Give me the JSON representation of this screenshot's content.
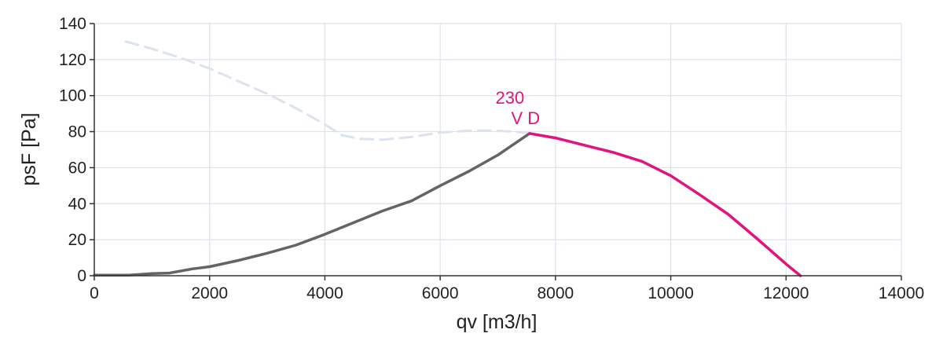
{
  "chart_data": {
    "type": "line",
    "title": "",
    "xlabel": "qv [m3/h]",
    "ylabel": "psF [Pa]",
    "xlim": [
      0,
      14000
    ],
    "ylim": [
      0,
      140
    ],
    "xticks": [
      0,
      2000,
      4000,
      6000,
      8000,
      10000,
      12000,
      14000
    ],
    "yticks": [
      0,
      20,
      40,
      60,
      80,
      100,
      120,
      140
    ],
    "grid": true,
    "legend": "none",
    "series": [
      {
        "style": "dashed",
        "color": "#dce3ee",
        "x": [
          550,
          1000,
          1500,
          2000,
          2500,
          3000,
          3500,
          4000,
          4300,
          4600,
          5000,
          5500,
          6000,
          6500,
          7000,
          7500
        ],
        "y": [
          130,
          126,
          121,
          115,
          108,
          101,
          93,
          84,
          78,
          76,
          75.5,
          77,
          79.5,
          80.5,
          80.5,
          79.5
        ]
      },
      {
        "style": "solid",
        "color": "#646464",
        "x": [
          0,
          600,
          1000,
          1300,
          1700,
          2000,
          2500,
          3000,
          3500,
          4000,
          4500,
          5000,
          5500,
          6000,
          6500,
          7000,
          7550
        ],
        "y": [
          0.3,
          0.3,
          1.2,
          1.5,
          3.8,
          5,
          8.5,
          12.5,
          17,
          23,
          29.5,
          36,
          41.5,
          50,
          58,
          67,
          79
        ]
      },
      {
        "style": "solid",
        "color": "#e0147f",
        "x": [
          7550,
          8000,
          8500,
          9000,
          9500,
          10000,
          10500,
          11000,
          11500,
          12000,
          12250
        ],
        "y": [
          79,
          76.5,
          72.5,
          68.5,
          63.5,
          55.5,
          45,
          34,
          20.5,
          6.5,
          0
        ]
      }
    ],
    "annotations": [
      {
        "lines": [
          "230",
          "V D"
        ],
        "x": 7550,
        "y": 79,
        "color": "#e0147f"
      }
    ]
  }
}
